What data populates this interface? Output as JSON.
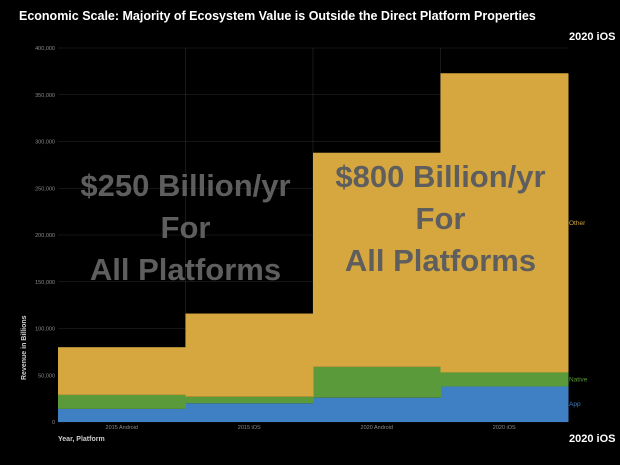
{
  "title": "Economic Scale: Majority of Ecosystem Value is Outside the Direct Platform Properties",
  "corner_top": "2020 iOS",
  "corner_bottom": "2020 iOS",
  "chart_data": {
    "type": "area",
    "categories": [
      "2015 Android",
      "2015 iOS",
      "2020 Android",
      "2020 iOS"
    ],
    "series": [
      {
        "name": "App",
        "color": "#3f7fc4",
        "values": [
          14000,
          20000,
          26000,
          38000
        ]
      },
      {
        "name": "Native",
        "color": "#5a9a3a",
        "values": [
          15000,
          7000,
          33000,
          15000
        ]
      },
      {
        "name": "Other",
        "color": "#d6a73e",
        "values": [
          51000,
          89000,
          229000,
          320000
        ]
      }
    ],
    "ylim": [
      0,
      400000
    ],
    "yticks": [
      "0",
      "50,000",
      "100,000",
      "150,000",
      "200,000",
      "250,000",
      "300,000",
      "350,000",
      "400,000"
    ],
    "xlabel": "Year, Platform",
    "ylabel": "Revenue in Billions",
    "grid": true,
    "legend": "right",
    "annotations": [
      {
        "lines": [
          "$250 Billion/yr",
          "For",
          "All Platforms"
        ]
      },
      {
        "lines": [
          "$800 Billion/yr",
          "For",
          "All Platforms"
        ]
      }
    ]
  }
}
